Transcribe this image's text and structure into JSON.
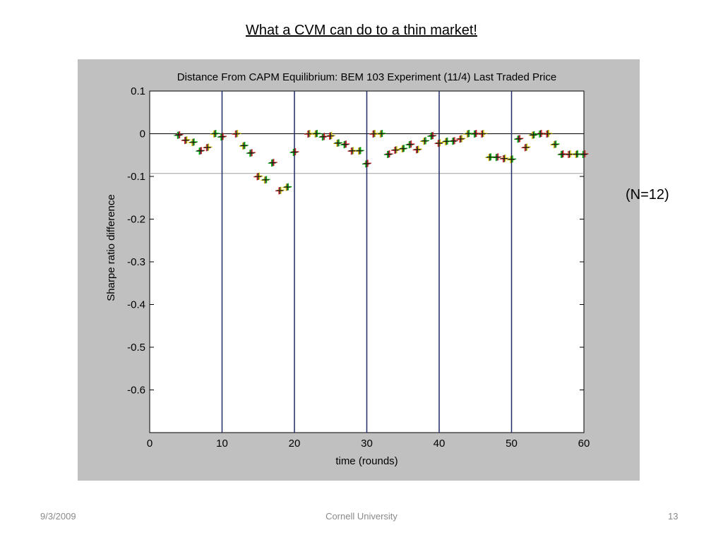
{
  "slide": {
    "title": "What a CVM can do to a thin market!",
    "note": "(N=12)"
  },
  "footer": {
    "date": "9/3/2009",
    "org": "Cornell University",
    "page": "13"
  },
  "chart_data": {
    "type": "scatter",
    "title": "Distance From CAPM Equilibrium: BEM 103 Experiment (11/4) Last Traded Price",
    "xlabel": "time (rounds)",
    "ylabel": "Sharpe ratio difference",
    "xlim": [
      0,
      60
    ],
    "ylim": [
      -0.7,
      0.1
    ],
    "xticks": [
      0,
      10,
      20,
      30,
      40,
      50,
      60
    ],
    "yticks": [
      0.1,
      0,
      -0.1,
      -0.2,
      -0.3,
      -0.4,
      -0.5,
      -0.6
    ],
    "ytick_labels": [
      "0.1",
      "0",
      "-0.1",
      "-0.2",
      "-0.3",
      "-0.4",
      "-0.5",
      "-0.6"
    ],
    "vertical_lines": [
      10,
      20,
      30,
      40,
      50
    ],
    "horizontal_lines": [
      0,
      -0.093
    ],
    "grid": false,
    "marker": "+",
    "colors": {
      "marker_dark": "#1a1a1a",
      "marker_green": "#00b000",
      "marker_red": "#d02020",
      "marker_yellow": "#d8c800",
      "vline": "#1f2a66",
      "hline_zero": "#000000",
      "hline_ref": "#a0a0a0",
      "figure_bg": "#c0c0c0"
    },
    "points": {
      "x": [
        4,
        5,
        6,
        7,
        8,
        9,
        10,
        12,
        13,
        14,
        15,
        16,
        17,
        18,
        19,
        20,
        22,
        23,
        24,
        25,
        26,
        27,
        28,
        29,
        30,
        31,
        32,
        33,
        34,
        35,
        36,
        37,
        38,
        39,
        40,
        41,
        42,
        43,
        44,
        45,
        46,
        47,
        48,
        49,
        50,
        51,
        52,
        53,
        54,
        55,
        56,
        57,
        58,
        59,
        60
      ],
      "y": [
        -0.003,
        -0.015,
        -0.02,
        -0.04,
        -0.032,
        0,
        -0.007,
        0,
        -0.028,
        -0.045,
        -0.1,
        -0.108,
        -0.068,
        -0.133,
        -0.125,
        -0.043,
        0,
        0,
        -0.007,
        -0.005,
        -0.022,
        -0.025,
        -0.04,
        -0.04,
        -0.07,
        0,
        0,
        -0.048,
        -0.038,
        -0.035,
        -0.025,
        -0.037,
        -0.017,
        -0.005,
        -0.022,
        -0.018,
        -0.017,
        -0.012,
        0,
        0,
        0,
        -0.055,
        -0.055,
        -0.058,
        -0.06,
        -0.012,
        -0.032,
        -0.003,
        0,
        0,
        -0.025,
        -0.048,
        -0.048,
        -0.048,
        -0.048
      ]
    }
  }
}
